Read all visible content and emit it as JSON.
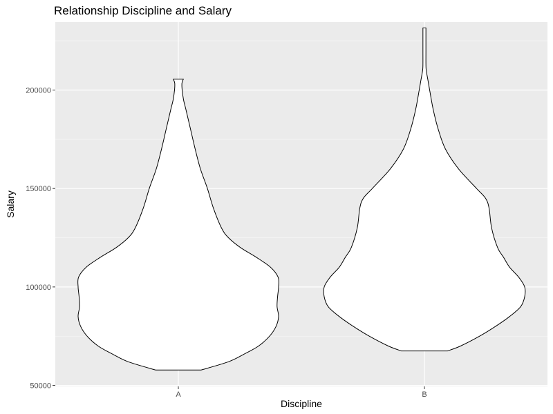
{
  "chart_data": {
    "type": "violin",
    "title": "Relationship Discipline and Salary",
    "xlabel": "Discipline",
    "ylabel": "Salary",
    "categories": [
      "A",
      "B"
    ],
    "ylim": [
      49500,
      234500
    ],
    "yticks": [
      50000,
      100000,
      150000,
      200000
    ],
    "grid": true,
    "violins": [
      {
        "category": "A",
        "min": 57800,
        "max": 205500,
        "profile": [
          [
            57800,
            0.225
          ],
          [
            62000,
            0.5
          ],
          [
            66000,
            0.66
          ],
          [
            70000,
            0.8
          ],
          [
            75000,
            0.91
          ],
          [
            80000,
            0.975
          ],
          [
            85000,
            1.0
          ],
          [
            90000,
            0.985
          ],
          [
            95000,
            0.99
          ],
          [
            100000,
            1.0
          ],
          [
            105000,
            0.995
          ],
          [
            110000,
            0.92
          ],
          [
            115000,
            0.78
          ],
          [
            120000,
            0.62
          ],
          [
            125000,
            0.5
          ],
          [
            130000,
            0.43
          ],
          [
            140000,
            0.35
          ],
          [
            150000,
            0.29
          ],
          [
            160000,
            0.22
          ],
          [
            170000,
            0.168
          ],
          [
            180000,
            0.122
          ],
          [
            190000,
            0.076
          ],
          [
            195000,
            0.052
          ],
          [
            200000,
            0.038
          ],
          [
            203500,
            0.036
          ],
          [
            205500,
            0.05
          ]
        ]
      },
      {
        "category": "B",
        "min": 67500,
        "max": 231500,
        "profile": [
          [
            67500,
            0.23
          ],
          [
            70000,
            0.36
          ],
          [
            75000,
            0.55
          ],
          [
            80000,
            0.71
          ],
          [
            85000,
            0.85
          ],
          [
            90000,
            0.96
          ],
          [
            95000,
            1.0
          ],
          [
            100000,
            1.0
          ],
          [
            105000,
            0.94
          ],
          [
            110000,
            0.85
          ],
          [
            115000,
            0.79
          ],
          [
            120000,
            0.73
          ],
          [
            130000,
            0.67
          ],
          [
            140000,
            0.645
          ],
          [
            145000,
            0.61
          ],
          [
            150000,
            0.52
          ],
          [
            160000,
            0.34
          ],
          [
            170000,
            0.21
          ],
          [
            180000,
            0.138
          ],
          [
            190000,
            0.088
          ],
          [
            200000,
            0.052
          ],
          [
            205000,
            0.035
          ],
          [
            210000,
            0.018
          ],
          [
            213000,
            0.015
          ],
          [
            220000,
            0.015
          ],
          [
            231500,
            0.015
          ]
        ]
      }
    ]
  }
}
